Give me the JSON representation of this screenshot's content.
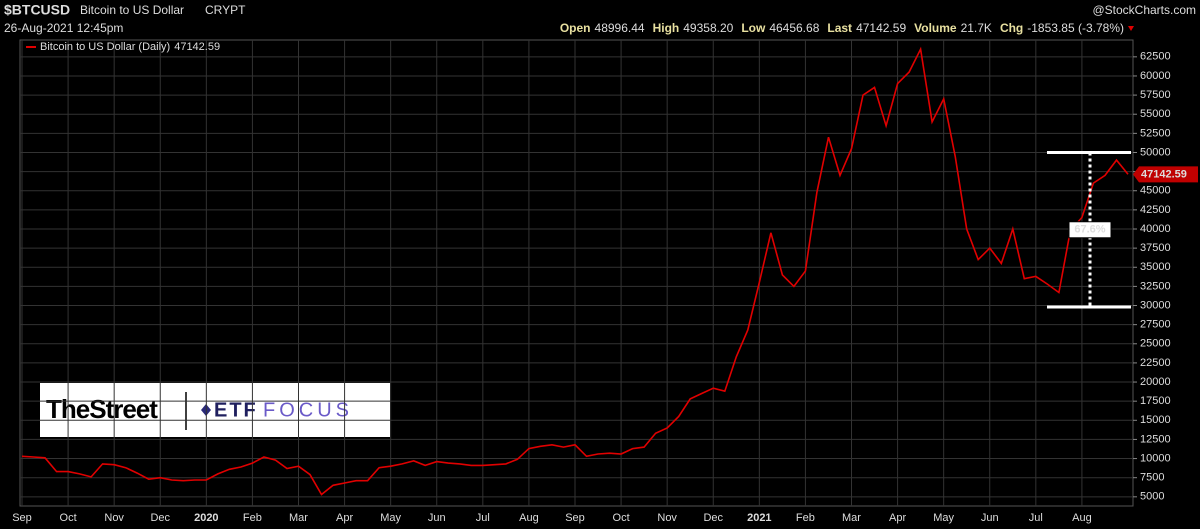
{
  "header": {
    "symbol": "$BTCUSD",
    "name": "Bitcoin to US Dollar",
    "exchange": "CRYPT",
    "source": "@StockCharts.com",
    "date": "26-Aug-2021 12:45pm",
    "quote": [
      {
        "label": "Open",
        "value": "48996.44"
      },
      {
        "label": "High",
        "value": "49358.20"
      },
      {
        "label": "Low",
        "value": "46456.68"
      },
      {
        "label": "Last",
        "value": "47142.59"
      },
      {
        "label": "Volume",
        "value": "21.7K"
      },
      {
        "label": "Chg",
        "value": "-1853.85 (-3.78%)"
      }
    ]
  },
  "logos": {
    "left": "TheStreet",
    "right_a": "ETF",
    "right_b": "FOCUS"
  },
  "chart_data": {
    "type": "line",
    "categories": [
      "Sep",
      null,
      null,
      null,
      "Oct",
      null,
      null,
      null,
      "Nov",
      null,
      null,
      null,
      "Dec",
      null,
      null,
      null,
      "2020",
      null,
      null,
      null,
      "Feb",
      null,
      null,
      null,
      "Mar",
      null,
      null,
      null,
      "Apr",
      null,
      null,
      null,
      "May",
      null,
      null,
      null,
      "Jun",
      null,
      null,
      null,
      "Jul",
      null,
      null,
      null,
      "Aug",
      null,
      null,
      null,
      "Sep",
      null,
      null,
      null,
      "Oct",
      null,
      null,
      null,
      "Nov",
      null,
      null,
      null,
      "Dec",
      null,
      null,
      null,
      "2021",
      null,
      null,
      null,
      "Feb",
      null,
      null,
      null,
      "Mar",
      null,
      null,
      null,
      "Apr",
      null,
      null,
      null,
      "May",
      null,
      null,
      null,
      "Jun",
      null,
      null,
      null,
      "Jul",
      null,
      null,
      null,
      "Aug",
      null,
      null,
      null,
      null
    ],
    "series": [
      {
        "name": "Bitcoin to US Dollar (Daily)",
        "color": "#e00000",
        "values": [
          10300,
          10200,
          10100,
          8300,
          8300,
          8000,
          7600,
          9300,
          9200,
          8800,
          8100,
          7300,
          7500,
          7200,
          7100,
          7200,
          7200,
          8000,
          8600,
          8900,
          9400,
          10200,
          9800,
          8700,
          9000,
          7900,
          5300,
          6500,
          6800,
          7100,
          7100,
          8800,
          9000,
          9300,
          9700,
          9100,
          9600,
          9400,
          9300,
          9100,
          9100,
          9200,
          9300,
          9900,
          11300,
          11600,
          11800,
          11500,
          11800,
          10300,
          10600,
          10700,
          10600,
          11300,
          11500,
          13300,
          14000,
          15500,
          17800,
          18500,
          19200,
          18800,
          23300,
          26800,
          33000,
          39500,
          34000,
          32500,
          34500,
          44800,
          52000,
          47000,
          50500,
          57500,
          58500,
          53500,
          59000,
          60500,
          63500,
          54000,
          57000,
          49500,
          40000,
          36000,
          37500,
          35500,
          40000,
          33500,
          33800,
          32800,
          31700,
          39800,
          41500,
          46000,
          47000,
          49000,
          47142.59
        ]
      }
    ],
    "last_price": 47142.59,
    "range_annotation": {
      "label": "67.6%",
      "top": 50000,
      "bottom": 29800
    },
    "ylim": [
      3800,
      64700
    ],
    "yticks": [
      5000,
      7500,
      10000,
      12500,
      15000,
      17500,
      20000,
      22500,
      25000,
      27500,
      30000,
      32500,
      35000,
      37500,
      40000,
      42500,
      45000,
      47500,
      50000,
      52500,
      55000,
      57500,
      60000,
      62500
    ],
    "grid": true
  }
}
